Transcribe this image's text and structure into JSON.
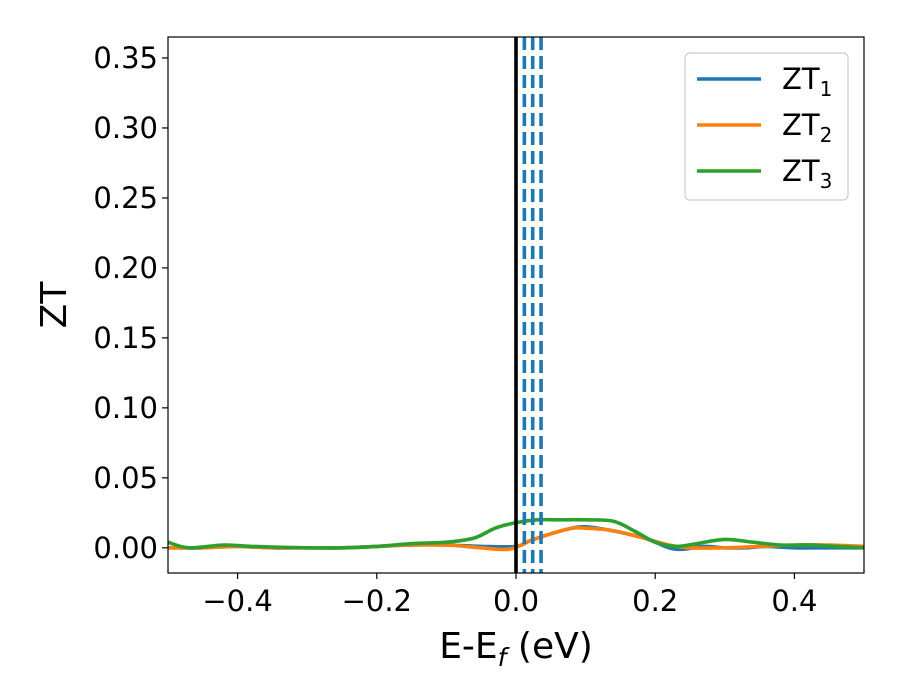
{
  "chart_data": {
    "type": "line",
    "title": "",
    "xlabel": {
      "main": "E-E",
      "sub": "f",
      "suffix": " (eV)"
    },
    "ylabel": "ZT",
    "xlim": [
      -0.5,
      0.5
    ],
    "ylim": [
      -0.018,
      0.365
    ],
    "xticks": [
      -0.4,
      -0.2,
      0.0,
      0.2,
      0.4
    ],
    "xtick_labels": [
      "−0.4",
      "−0.2",
      "0.0",
      "0.2",
      "0.4"
    ],
    "yticks": [
      0.0,
      0.05,
      0.1,
      0.15,
      0.2,
      0.25,
      0.3,
      0.35
    ],
    "ytick_labels": [
      "0.00",
      "0.05",
      "0.10",
      "0.15",
      "0.20",
      "0.25",
      "0.30",
      "0.35"
    ],
    "grid": false,
    "legend_position": "top-right",
    "reference_lines": {
      "solid": {
        "x": 0.0,
        "color": "#000000"
      },
      "dashed": {
        "x": [
          0.012,
          0.024,
          0.036
        ],
        "color": "#1f77b4"
      }
    },
    "series": [
      {
        "name": "ZT",
        "sub": "1",
        "color": "#1f77b4",
        "points": [
          [
            -0.5,
            0.0
          ],
          [
            -0.45,
            0.0
          ],
          [
            -0.4,
            0.001
          ],
          [
            -0.35,
            0.0
          ],
          [
            -0.3,
            0.0
          ],
          [
            -0.25,
            0.0
          ],
          [
            -0.2,
            0.001
          ],
          [
            -0.15,
            0.002
          ],
          [
            -0.1,
            0.002
          ],
          [
            -0.05,
            0.001
          ],
          [
            0.0,
            0.001
          ],
          [
            0.02,
            0.005
          ],
          [
            0.05,
            0.01
          ],
          [
            0.08,
            0.014
          ],
          [
            0.1,
            0.015
          ],
          [
            0.13,
            0.013
          ],
          [
            0.16,
            0.01
          ],
          [
            0.19,
            0.006
          ],
          [
            0.22,
            0.0
          ],
          [
            0.24,
            -0.001
          ],
          [
            0.27,
            0.001
          ],
          [
            0.3,
            0.0
          ],
          [
            0.33,
            0.0
          ],
          [
            0.36,
            0.001
          ],
          [
            0.4,
            0.0
          ],
          [
            0.45,
            0.0
          ],
          [
            0.5,
            0.0
          ]
        ]
      },
      {
        "name": "ZT",
        "sub": "2",
        "color": "#ff7f0e",
        "points": [
          [
            -0.5,
            0.0
          ],
          [
            -0.45,
            0.0
          ],
          [
            -0.4,
            0.001
          ],
          [
            -0.35,
            0.0
          ],
          [
            -0.3,
            0.0
          ],
          [
            -0.25,
            0.0
          ],
          [
            -0.2,
            0.001
          ],
          [
            -0.15,
            0.002
          ],
          [
            -0.1,
            0.002
          ],
          [
            -0.05,
            0.0
          ],
          [
            -0.01,
            -0.001
          ],
          [
            0.02,
            0.005
          ],
          [
            0.05,
            0.01
          ],
          [
            0.08,
            0.014
          ],
          [
            0.1,
            0.014
          ],
          [
            0.13,
            0.013
          ],
          [
            0.16,
            0.01
          ],
          [
            0.19,
            0.006
          ],
          [
            0.22,
            0.002
          ],
          [
            0.25,
            0.0
          ],
          [
            0.3,
            0.0
          ],
          [
            0.35,
            0.001
          ],
          [
            0.4,
            0.002
          ],
          [
            0.45,
            0.002
          ],
          [
            0.5,
            0.001
          ]
        ]
      },
      {
        "name": "ZT",
        "sub": "3",
        "color": "#2ca02c",
        "points": [
          [
            -0.5,
            0.004
          ],
          [
            -0.47,
            0.0
          ],
          [
            -0.42,
            0.002
          ],
          [
            -0.38,
            0.001
          ],
          [
            -0.3,
            0.0
          ],
          [
            -0.25,
            0.0
          ],
          [
            -0.2,
            0.001
          ],
          [
            -0.15,
            0.003
          ],
          [
            -0.1,
            0.004
          ],
          [
            -0.06,
            0.007
          ],
          [
            -0.03,
            0.014
          ],
          [
            0.0,
            0.018
          ],
          [
            0.03,
            0.02
          ],
          [
            0.06,
            0.02
          ],
          [
            0.1,
            0.02
          ],
          [
            0.14,
            0.019
          ],
          [
            0.17,
            0.012
          ],
          [
            0.2,
            0.004
          ],
          [
            0.23,
            0.001
          ],
          [
            0.26,
            0.003
          ],
          [
            0.3,
            0.006
          ],
          [
            0.34,
            0.004
          ],
          [
            0.38,
            0.002
          ],
          [
            0.42,
            0.002
          ],
          [
            0.46,
            0.001
          ],
          [
            0.5,
            0.0
          ]
        ]
      }
    ]
  }
}
